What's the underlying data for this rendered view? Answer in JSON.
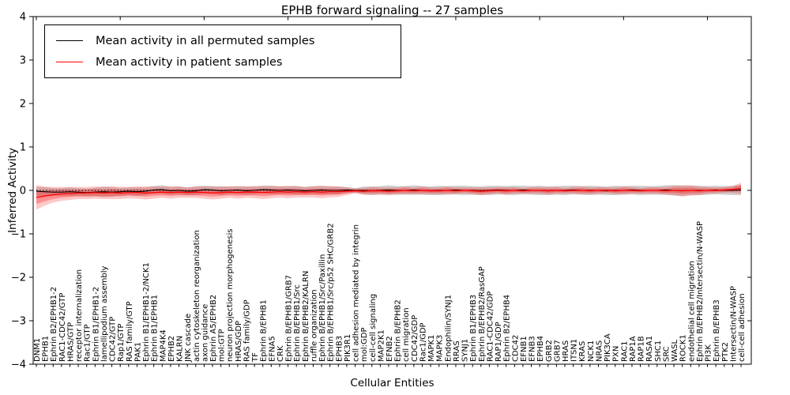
{
  "window": {
    "title": "EPHB forward signaling -- 27 samples"
  },
  "colors": {
    "permuted_line": "#000000",
    "patient_line": "#ff0000",
    "permuted_band": "rgba(0,0,0,0.18)",
    "patient_band": "rgba(255,0,0,0.22)",
    "axis": "#000000",
    "background": "#ffffff"
  },
  "legend": {
    "entries": [
      {
        "label": "Mean activity in all permuted samples",
        "color": "#000000"
      },
      {
        "label": "Mean activity in patient samples",
        "color": "#ff0000"
      }
    ]
  },
  "chart_data": {
    "type": "line",
    "title": "EPHB forward signaling -- 27 samples",
    "xlabel": "Cellular Entities",
    "ylabel": "Inferred Activity",
    "ylim": [
      -4,
      4
    ],
    "grid": false,
    "legend_position": "upper left",
    "y_ticks": [
      "−4",
      "−3",
      "−2",
      "−1",
      "0",
      "1",
      "2",
      "3",
      "4"
    ],
    "y_tick_values": [
      -4,
      -3,
      -2,
      -1,
      0,
      1,
      2,
      3,
      4
    ],
    "zero_reference_line": 0,
    "categories": [
      "DNM1",
      "EPHB1",
      "Ephrin B2/EPHB1-2",
      "RAC1-CDC42/GTP",
      "HRAS/GTP",
      "receptor internalization",
      "Rac1/GTP",
      "Ephrin B1/EPHB1-2",
      "lamellipodium assembly",
      "CDC42/GTP",
      "Rap1/GTP",
      "RAS family/GTP",
      "PAK1",
      "Ephrin B1/EPHB1-2/NCK1",
      "Ephrin B1/EPHB1",
      "MAP4K4",
      "EPHB2",
      "KALRN",
      "JNK cascade",
      "actin cytoskeleton reorganization",
      "axon guidance",
      "Ephrin A5/EPHB2",
      "mol:GTP",
      "neuron projection morphogenesis",
      "HRAS/GDP",
      "RAS family/GDP",
      "TF",
      "Ephrin B/EPHB1",
      "EFNA5",
      "CRK",
      "Ephrin B/EPHB1/GRB7",
      "Ephrin B/EPHB1/Src",
      "Ephrin B/EPHB2/KALRN",
      "ruffle organization",
      "Ephrin B/EPHB1/Src/Paxillin",
      "Ephrin B/EPHB1/Src/p52 SHC/GRB2",
      "EPHB3",
      "PIK3R1",
      "cell adhesion mediated by integrin",
      "mol:GDP",
      "cell-cell signaling",
      "MAP2K1",
      "EFNB2",
      "Ephrin B/EPHB2",
      "cell migration",
      "CDC42/GDP",
      "Rac1/GDP",
      "MAPK1",
      "MAPK3",
      "Endophilin/SYNJ1",
      "RRAS",
      "SYNJ1",
      "Ephrin B1/EPHB3",
      "Ephrin B/EPHB2/RasGAP",
      "RAC1-CDC42/GDP",
      "RAP1/GDP",
      "Ephrin B2/EPHB4",
      "CDC42",
      "EFNB1",
      "EFNB3",
      "EPHB4",
      "GRB2",
      "GRB7",
      "HRAS",
      "ITSN1",
      "KRAS",
      "NCK1",
      "NRAS",
      "PIK3CA",
      "PXN",
      "RAC1",
      "RAP1A",
      "RAP1B",
      "RASA1",
      "SHC1",
      "SRC",
      "WASL",
      "ROCK1",
      "endothelial cell migration",
      "Ephrin B/EPHB2/Intersectin/N-WASP",
      "PI3K",
      "Ephrin B/EPHB3",
      "PTK2",
      "Intersectin/N-WASP",
      "cell-cell adhesion"
    ],
    "series": [
      {
        "name": "Mean activity in all permuted samples",
        "color": "#000000",
        "values": [
          -0.02,
          -0.03,
          -0.04,
          -0.04,
          -0.03,
          -0.04,
          -0.05,
          -0.04,
          -0.03,
          -0.04,
          -0.03,
          -0.02,
          -0.03,
          -0.02,
          0.01,
          0.02,
          -0.01,
          0.0,
          -0.02,
          -0.01,
          0.02,
          0.01,
          -0.01,
          0.0,
          0.01,
          -0.01,
          0.0,
          0.02,
          0.01,
          0.0,
          0.01,
          0.0,
          -0.01,
          0.0,
          0.01,
          0.0,
          0.0,
          0.01,
          0.0,
          0.0,
          -0.01,
          0.0,
          0.01,
          0.0,
          0.0,
          0.01,
          0.0,
          -0.01,
          0.0,
          0.0,
          0.01,
          0.0,
          0.0,
          -0.01,
          0.0,
          0.01,
          0.0,
          0.0,
          0.01,
          0.0,
          0.0,
          -0.01,
          0.0,
          0.0,
          0.01,
          0.0,
          0.0,
          0.0,
          -0.01,
          0.0,
          0.0,
          0.01,
          0.0,
          0.0,
          0.0,
          0.01,
          0.0,
          -0.01,
          0.0,
          0.0,
          0.0,
          0.01,
          0.0,
          0.0,
          0.01
        ],
        "band_halfwidth": [
          0.1,
          0.1,
          0.09,
          0.09,
          0.1,
          0.09,
          0.09,
          0.1,
          0.12,
          0.11,
          0.09,
          0.09,
          0.1,
          0.09,
          0.09,
          0.1,
          0.09,
          0.09,
          0.09,
          0.1,
          0.09,
          0.09,
          0.1,
          0.09,
          0.09,
          0.1,
          0.09,
          0.09,
          0.1,
          0.09,
          0.09,
          0.1,
          0.09,
          0.09,
          0.1,
          0.09,
          0.09,
          0.07,
          0.05,
          0.09,
          0.1,
          0.1,
          0.11,
          0.1,
          0.1,
          0.11,
          0.1,
          0.1,
          0.11,
          0.1,
          0.1,
          0.11,
          0.1,
          0.1,
          0.11,
          0.1,
          0.1,
          0.11,
          0.1,
          0.1,
          0.11,
          0.1,
          0.1,
          0.11,
          0.1,
          0.1,
          0.11,
          0.1,
          0.1,
          0.11,
          0.1,
          0.1,
          0.11,
          0.1,
          0.1,
          0.11,
          0.12,
          0.12,
          0.11,
          0.11,
          0.1,
          0.1,
          0.1,
          0.11,
          0.12
        ]
      },
      {
        "name": "Mean activity in patient samples",
        "color": "#ff0000",
        "values": [
          -0.16,
          -0.13,
          -0.1,
          -0.08,
          -0.07,
          -0.06,
          -0.06,
          -0.05,
          -0.06,
          -0.05,
          -0.06,
          -0.05,
          -0.05,
          -0.06,
          -0.05,
          -0.04,
          -0.05,
          -0.04,
          -0.05,
          -0.04,
          -0.05,
          -0.06,
          -0.05,
          -0.04,
          -0.05,
          -0.04,
          -0.04,
          -0.05,
          -0.04,
          -0.03,
          -0.04,
          -0.03,
          -0.04,
          -0.03,
          -0.04,
          -0.03,
          -0.03,
          -0.02,
          -0.01,
          -0.02,
          -0.01,
          -0.01,
          -0.02,
          -0.01,
          0.0,
          -0.01,
          0.0,
          -0.01,
          -0.01,
          0.0,
          -0.01,
          0.0,
          -0.01,
          -0.02,
          -0.01,
          0.0,
          -0.01,
          0.0,
          -0.01,
          0.0,
          0.0,
          -0.01,
          0.0,
          -0.01,
          0.0,
          0.0,
          -0.01,
          0.0,
          0.0,
          -0.01,
          0.0,
          0.0,
          -0.01,
          0.0,
          0.0,
          -0.01,
          0.0,
          -0.01,
          0.0,
          -0.01,
          0.0,
          0.0,
          0.01,
          0.02,
          0.05
        ],
        "band_halfwidth": [
          0.28,
          0.22,
          0.18,
          0.16,
          0.15,
          0.14,
          0.14,
          0.14,
          0.14,
          0.15,
          0.14,
          0.13,
          0.14,
          0.15,
          0.14,
          0.13,
          0.14,
          0.13,
          0.12,
          0.13,
          0.14,
          0.15,
          0.14,
          0.13,
          0.14,
          0.13,
          0.14,
          0.15,
          0.14,
          0.13,
          0.14,
          0.13,
          0.12,
          0.13,
          0.14,
          0.13,
          0.12,
          0.09,
          0.06,
          0.08,
          0.09,
          0.08,
          0.09,
          0.08,
          0.09,
          0.08,
          0.09,
          0.08,
          0.08,
          0.09,
          0.08,
          0.07,
          0.08,
          0.09,
          0.08,
          0.08,
          0.09,
          0.08,
          0.07,
          0.08,
          0.08,
          0.09,
          0.08,
          0.07,
          0.08,
          0.09,
          0.08,
          0.08,
          0.07,
          0.08,
          0.09,
          0.08,
          0.07,
          0.08,
          0.08,
          0.09,
          0.11,
          0.13,
          0.12,
          0.1,
          0.08,
          0.07,
          0.07,
          0.08,
          0.13
        ]
      }
    ]
  }
}
